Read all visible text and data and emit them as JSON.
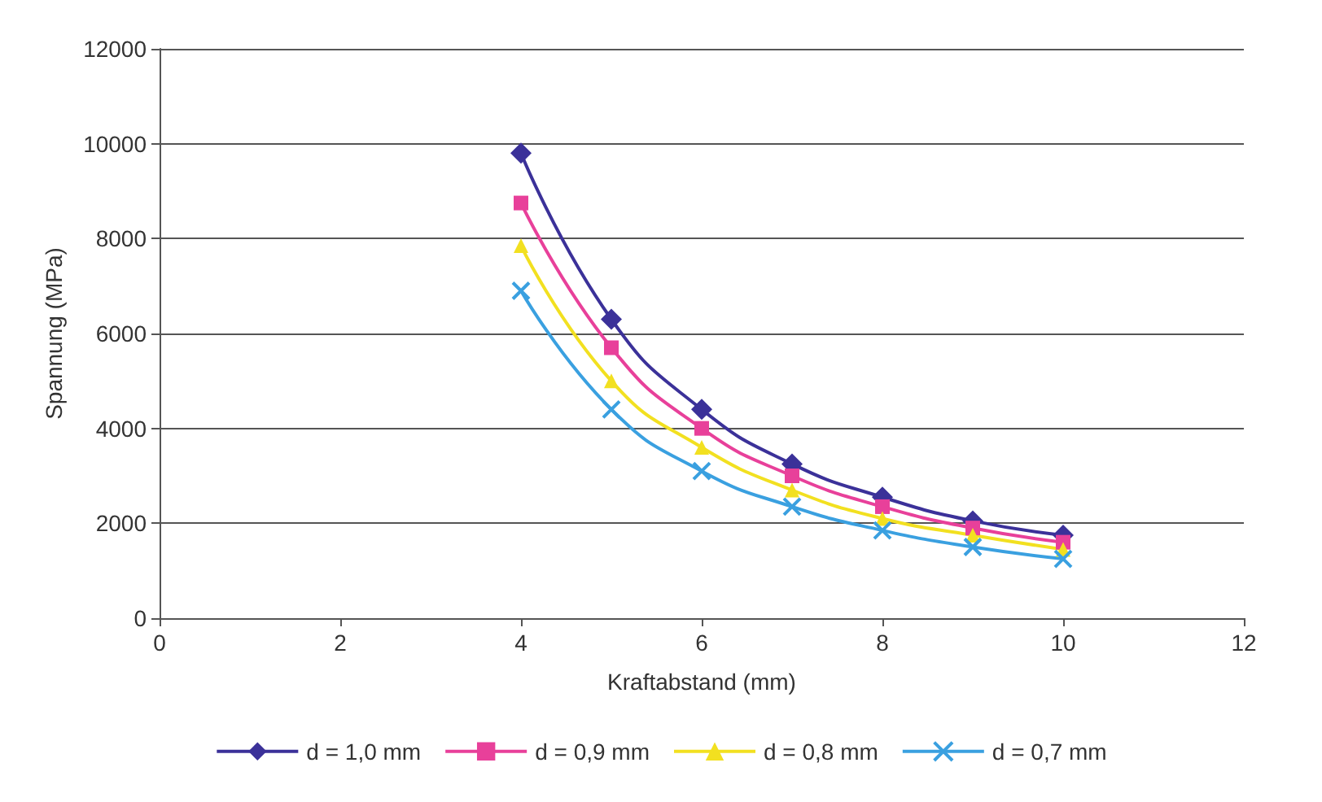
{
  "chart_data": {
    "type": "line",
    "xlabel": "Kraftabstand (mm)",
    "ylabel": "Spannung (MPa)",
    "x": [
      4,
      5,
      6,
      7,
      8,
      9,
      10
    ],
    "xlim": [
      0,
      12
    ],
    "xticks": [
      0,
      2,
      4,
      6,
      8,
      10,
      12
    ],
    "ylim": [
      0,
      12000
    ],
    "yticks": [
      0,
      2000,
      4000,
      6000,
      8000,
      10000,
      12000
    ],
    "grid": "y",
    "legend": "bottom",
    "series": [
      {
        "name": "d = 1,0 mm",
        "color": "#3b3199",
        "marker": "diamond",
        "values": [
          9800,
          6300,
          4400,
          3250,
          2550,
          2050,
          1750
        ]
      },
      {
        "name": "d = 0,9 mm",
        "color": "#e8409a",
        "marker": "square",
        "values": [
          8750,
          5700,
          4000,
          3000,
          2350,
          1900,
          1600
        ]
      },
      {
        "name": "d = 0,8 mm",
        "color": "#f2e020",
        "marker": "triangle",
        "values": [
          7850,
          5000,
          3600,
          2700,
          2100,
          1750,
          1450
        ]
      },
      {
        "name": "d = 0,7 mm",
        "color": "#3aa0e0",
        "marker": "cross",
        "values": [
          6900,
          4400,
          3100,
          2350,
          1850,
          1500,
          1250
        ]
      }
    ]
  }
}
